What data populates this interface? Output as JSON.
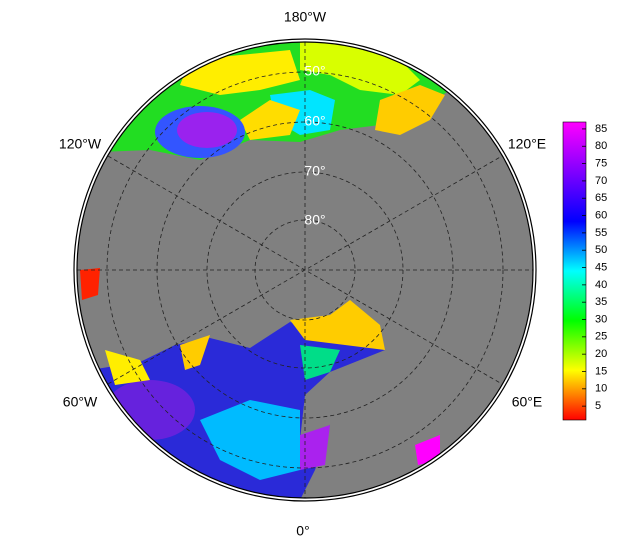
{
  "map": {
    "longitude_labels": [
      "180°W",
      "120°W",
      "120°E",
      "60°W",
      "60°E",
      "0°"
    ],
    "latitude_labels": [
      "50°",
      "60°",
      "70°",
      "80°"
    ]
  },
  "colorbar": {
    "lim": [
      1,
      87
    ],
    "ticks": [
      5,
      10,
      15,
      20,
      25,
      30,
      35,
      40,
      45,
      50,
      55,
      60,
      65,
      70,
      75,
      80,
      85
    ],
    "colors": [
      "#ff0000",
      "#ffff00",
      "#00ff00",
      "#00ffff",
      "#0000ff",
      "#8000ff",
      "#ff00ff"
    ]
  }
}
